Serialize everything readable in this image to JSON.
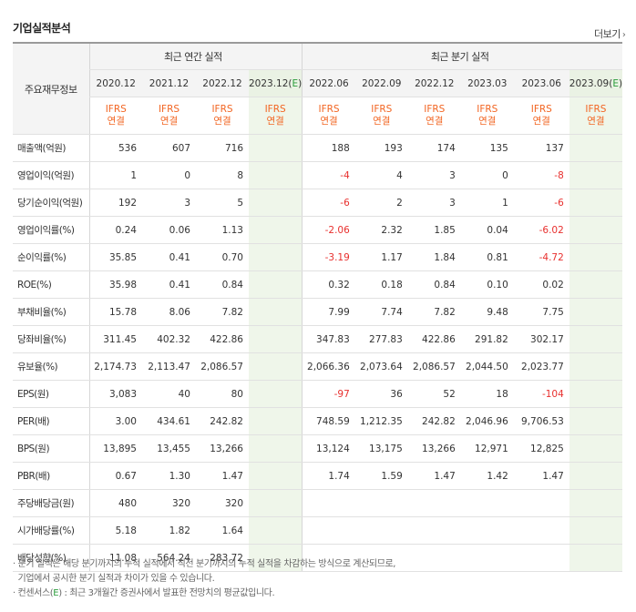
{
  "title": "기업실적분석",
  "more_label": "더보기",
  "header": {
    "corner_label": "주요재무정보",
    "annual_group": "최근 연간 실적",
    "quarter_group": "최근 분기 실적",
    "annual_periods": [
      "2020.12",
      "2021.12",
      "2022.12",
      "2023.12(E)"
    ],
    "quarter_periods": [
      "2022.06",
      "2022.09",
      "2022.12",
      "2023.03",
      "2023.06",
      "2023.09(E)"
    ],
    "basis_line1": "IFRS",
    "basis_line2": "연결"
  },
  "rows": [
    {
      "label": "매출액(억원)",
      "annual": [
        "536",
        "607",
        "716",
        ""
      ],
      "quarter": [
        "188",
        "193",
        "174",
        "135",
        "137",
        ""
      ]
    },
    {
      "label": "영업이익(억원)",
      "annual": [
        "1",
        "0",
        "8",
        ""
      ],
      "quarter": [
        "-4",
        "4",
        "3",
        "0",
        "-8",
        ""
      ]
    },
    {
      "label": "당기순이익(억원)",
      "annual": [
        "192",
        "3",
        "5",
        ""
      ],
      "quarter": [
        "-6",
        "2",
        "3",
        "1",
        "-6",
        ""
      ]
    },
    {
      "label": "영업이익률(%)",
      "annual": [
        "0.24",
        "0.06",
        "1.13",
        ""
      ],
      "quarter": [
        "-2.06",
        "2.32",
        "1.85",
        "0.04",
        "-6.02",
        ""
      ]
    },
    {
      "label": "순이익률(%)",
      "annual": [
        "35.85",
        "0.41",
        "0.70",
        ""
      ],
      "quarter": [
        "-3.19",
        "1.17",
        "1.84",
        "0.81",
        "-4.72",
        ""
      ]
    },
    {
      "label": "ROE(%)",
      "annual": [
        "35.98",
        "0.41",
        "0.84",
        ""
      ],
      "quarter": [
        "0.32",
        "0.18",
        "0.84",
        "0.10",
        "0.02",
        ""
      ]
    },
    {
      "label": "부채비율(%)",
      "annual": [
        "15.78",
        "8.06",
        "7.82",
        ""
      ],
      "quarter": [
        "7.99",
        "7.74",
        "7.82",
        "9.48",
        "7.75",
        ""
      ]
    },
    {
      "label": "당좌비율(%)",
      "annual": [
        "311.45",
        "402.32",
        "422.86",
        ""
      ],
      "quarter": [
        "347.83",
        "277.83",
        "422.86",
        "291.82",
        "302.17",
        ""
      ]
    },
    {
      "label": "유보율(%)",
      "annual": [
        "2,174.73",
        "2,113.47",
        "2,086.57",
        ""
      ],
      "quarter": [
        "2,066.36",
        "2,073.64",
        "2,086.57",
        "2,044.50",
        "2,023.77",
        ""
      ]
    },
    {
      "label": "EPS(원)",
      "annual": [
        "3,083",
        "40",
        "80",
        ""
      ],
      "quarter": [
        "-97",
        "36",
        "52",
        "18",
        "-104",
        ""
      ]
    },
    {
      "label": "PER(배)",
      "annual": [
        "3.00",
        "434.61",
        "242.82",
        ""
      ],
      "quarter": [
        "748.59",
        "1,212.35",
        "242.82",
        "2,046.96",
        "9,706.53",
        ""
      ]
    },
    {
      "label": "BPS(원)",
      "annual": [
        "13,895",
        "13,455",
        "13,266",
        ""
      ],
      "quarter": [
        "13,124",
        "13,175",
        "13,266",
        "12,971",
        "12,825",
        ""
      ]
    },
    {
      "label": "PBR(배)",
      "annual": [
        "0.67",
        "1.30",
        "1.47",
        ""
      ],
      "quarter": [
        "1.74",
        "1.59",
        "1.47",
        "1.42",
        "1.47",
        ""
      ]
    },
    {
      "label": "주당배당금(원)",
      "annual": [
        "480",
        "320",
        "320",
        ""
      ],
      "quarter": [
        "",
        "",
        "",
        "",
        "",
        ""
      ]
    },
    {
      "label": "시가배당률(%)",
      "annual": [
        "5.18",
        "1.82",
        "1.64",
        ""
      ],
      "quarter": [
        "",
        "",
        "",
        "",
        "",
        ""
      ]
    },
    {
      "label": "배당성향(%)",
      "annual": [
        "11.08",
        "564.24",
        "283.72",
        ""
      ],
      "quarter": [
        "",
        "",
        "",
        "",
        "",
        ""
      ]
    }
  ],
  "notes": {
    "line1": "· 분기 실적은 해당 분기까지의 누적 실적에서 직전 분기까지의 누적 실적을 차감하는 방식으로 계산되므로,",
    "line2": "  기업에서 공시한 분기 실적과 차이가 있을 수 있습니다.",
    "line3_prefix": "· 컨센서스(",
    "line3_mark": "E",
    "line3_suffix": ") : 최근 3개월간 증권사에서 발표한 전망치의 평균값입니다."
  },
  "colors": {
    "negative": "#e8302e",
    "basis": "#f26522",
    "estimate_bg": "#eff6ea",
    "estimate_mark": "#2a9d3b"
  }
}
